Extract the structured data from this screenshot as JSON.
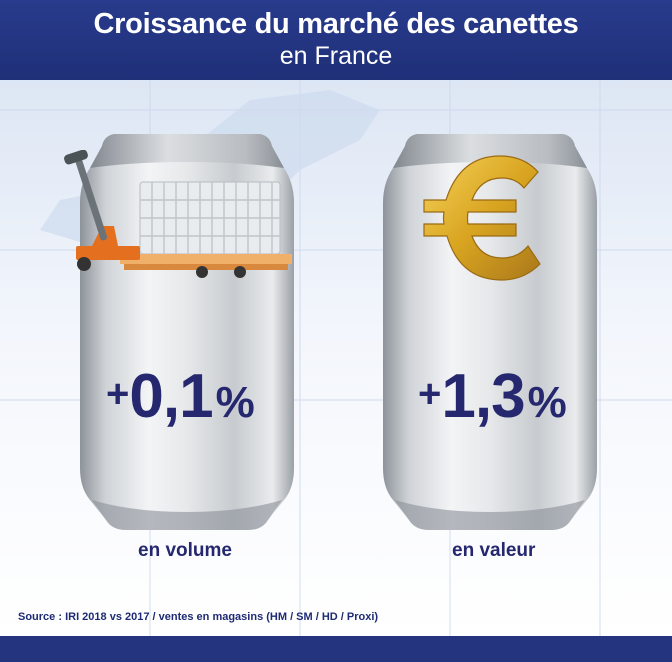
{
  "header": {
    "title": "Croissance du marché des canettes",
    "subtitle": "en France"
  },
  "cans": [
    {
      "sign": "+",
      "number": "0,1",
      "unit": "%",
      "label": "en volume",
      "icon": "pallet-jack-icon"
    },
    {
      "sign": "+",
      "number": "1,3",
      "unit": "%",
      "label": "en valeur",
      "icon": "euro-icon"
    }
  ],
  "source": "Source : IRI 2018 vs 2017 / ventes en magasins (HM / SM / HD / Proxi)",
  "colors": {
    "header_bg": "#24347e",
    "text_dark_blue": "#25286e",
    "pallet_orange": "#e4701f",
    "euro_gold": "#d9a521"
  }
}
